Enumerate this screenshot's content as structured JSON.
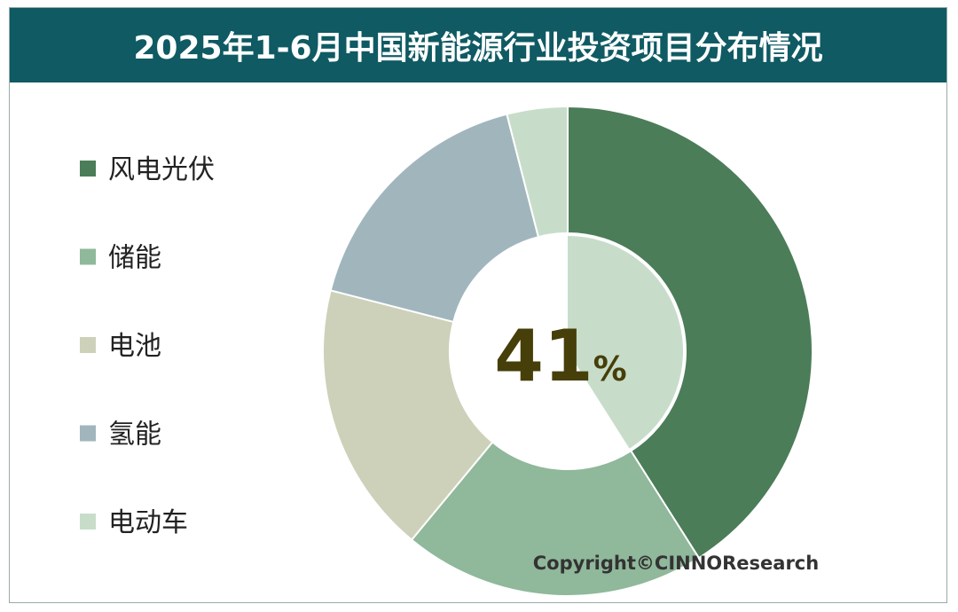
{
  "chart_data": {
    "type": "donut",
    "title": "2025年1-6月中国新能源行业投资项目分布情况",
    "categories": [
      "风电光伏",
      "储能",
      "电池",
      "氢能",
      "电动车"
    ],
    "values": [
      41,
      20,
      18,
      17,
      4
    ],
    "colors": [
      "#4b7d58",
      "#90b89b",
      "#cdd1b9",
      "#a1b5bd",
      "#c7ddca"
    ],
    "center_number": 41,
    "center_unit": "%",
    "highlight_color": "#c7ddca",
    "center_text_color": "#463f0a",
    "copyright": "Copyright©CINNOResearch"
  }
}
